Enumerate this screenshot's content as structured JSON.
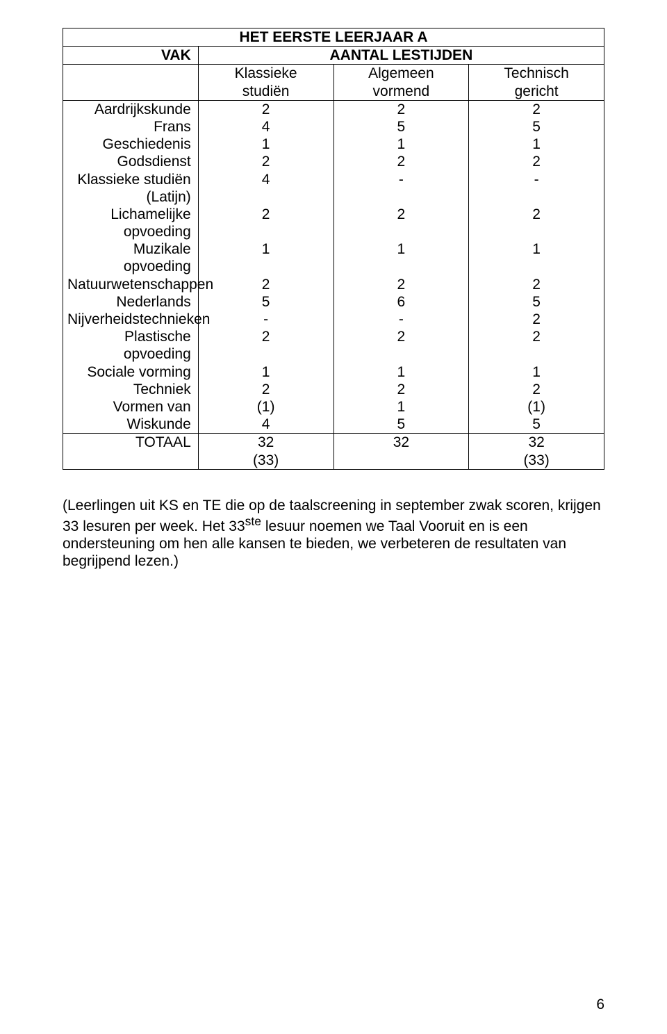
{
  "colors": {
    "text": "#000000",
    "background": "#ffffff",
    "border": "#000000"
  },
  "typography": {
    "font_family": "Arial",
    "base_size_pt": 16,
    "bold_weight": 700
  },
  "title": "HET EERSTE LEERJAAR A",
  "header": {
    "vak": "VAK",
    "aantal": "AANTAL LESTIJDEN",
    "col1_a": "Klassieke",
    "col1_b": "studiën",
    "col2_a": "Algemeen",
    "col2_b": "vormend",
    "col3_a": "Technisch",
    "col3_b": "gericht"
  },
  "rows": [
    {
      "label": "Aardrijkskunde",
      "c1": "2",
      "c2": "2",
      "c3": "2"
    },
    {
      "label": "Frans",
      "c1": "4",
      "c2": "5",
      "c3": "5"
    },
    {
      "label": "Geschiedenis",
      "c1": "1",
      "c2": "1",
      "c3": "1"
    },
    {
      "label": "Godsdienst",
      "c1": "2",
      "c2": "2",
      "c3": "2"
    },
    {
      "label": "Klassieke studiën (Latijn)",
      "c1": "4",
      "c2": "-",
      "c3": "-"
    },
    {
      "label": "Lichamelijke opvoeding",
      "c1": "2",
      "c2": "2",
      "c3": "2"
    },
    {
      "label": "Muzikale opvoeding",
      "c1": "1",
      "c2": "1",
      "c3": "1"
    },
    {
      "label": "Natuurwetenschappen",
      "c1": "2",
      "c2": "2",
      "c3": "2"
    },
    {
      "label": "Nederlands",
      "c1": "5",
      "c2": "6",
      "c3": "5"
    },
    {
      "label": "Nijverheidstechnieken",
      "c1": "-",
      "c2": "-",
      "c3": "2"
    },
    {
      "label": "Plastische opvoeding",
      "c1": "2",
      "c2": "2",
      "c3": "2"
    },
    {
      "label": "Sociale vorming",
      "c1": "1",
      "c2": "1",
      "c3": "1"
    },
    {
      "label": "Techniek",
      "c1": "2",
      "c2": "2",
      "c3": "2"
    },
    {
      "label": "Vormen van",
      "c1": "(1)",
      "c2": "1",
      "c3": "(1)"
    },
    {
      "label": "Wiskunde",
      "c1": "4",
      "c2": "5",
      "c3": "5"
    }
  ],
  "total": {
    "label": "TOTAAL",
    "c1a": "32",
    "c1b": "(33)",
    "c2a": "32",
    "c2b": "",
    "c3a": "32",
    "c3b": "(33)"
  },
  "footnote": "(Leerlingen uit KS en TE die op de taalscreening in september zwak scoren, krijgen 33 lesuren per week. Het 33ste lesuur noemen we Taal Vooruit en is een ondersteuning om hen alle kansen te bieden, we verbeteren de resultaten van begrijpend lezen.)",
  "footnote_parts": {
    "p1": "(Leerlingen uit KS en TE die op de taalscreening in september zwak scoren, krijgen 33 lesuren per week. Het 33",
    "sup": "ste",
    "p2": " lesuur noemen we Taal Vooruit en is een ondersteuning om hen alle kansen te bieden, we verbeteren de resultaten van begrijpend lezen.)"
  },
  "page_number": "6"
}
